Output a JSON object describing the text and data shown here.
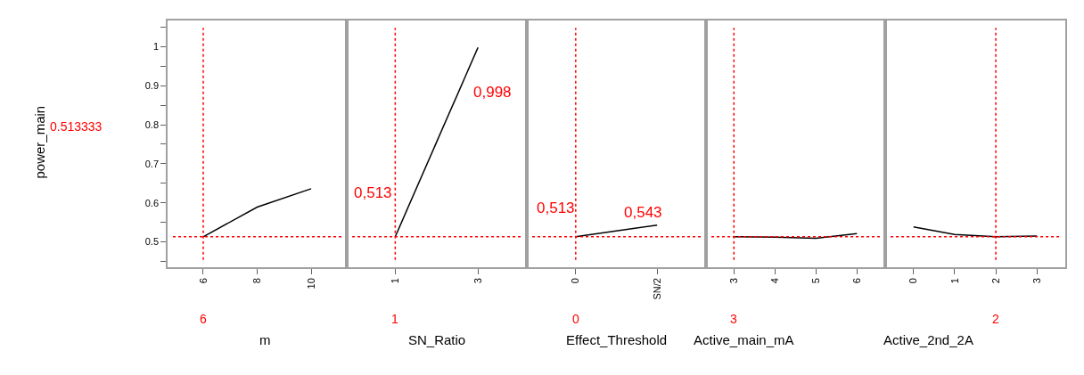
{
  "chart_data": [
    {
      "type": "line",
      "xlabel": "m",
      "ylabel": "power_main",
      "x": [
        6,
        8,
        10
      ],
      "series": [
        {
          "color": "#000000",
          "values": [
            0.513,
            0.589,
            0.636
          ]
        }
      ],
      "xlim": [
        4.68,
        11.32
      ],
      "xticks": [
        6,
        8,
        10
      ],
      "ylim": [
        0.435,
        1.067
      ],
      "yticks": [
        {
          "value": 0.45,
          "label": null
        },
        0.5,
        {
          "value": 0.55,
          "label": null
        },
        0.6,
        {
          "value": 0.65,
          "label": null
        },
        0.7,
        {
          "value": 0.75,
          "label": null
        },
        0.8,
        {
          "value": 0.85,
          "label": null
        },
        0.9,
        {
          "value": 0.95,
          "label": null
        },
        1,
        {
          "value": 1.05,
          "label": null
        }
      ],
      "ref_lines": [
        {
          "axis": "x",
          "value": 6,
          "label": "6",
          "color": "#ff0000",
          "line_style": "dotted"
        },
        {
          "axis": "y",
          "value": 0.513333,
          "label": "0.513333",
          "color": "#ff0000",
          "line_style": "dotted"
        }
      ]
    },
    {
      "type": "line",
      "xlabel": "SN_Ratio",
      "x": [
        1,
        3
      ],
      "series": [
        {
          "color": "#000000",
          "values": [
            0.513,
            0.998
          ]
        }
      ],
      "xlim": [
        -0.17,
        4.18
      ],
      "xticks": [
        1,
        3
      ],
      "ylim": [
        0.435,
        1.067
      ],
      "tick_labels": "x",
      "ref_lines": [
        {
          "axis": "x",
          "value": 1,
          "label": "1",
          "color": "#ff0000",
          "line_style": "dotted"
        },
        {
          "axis": "y",
          "value": 0.513333,
          "color": "#ff0000",
          "line_style": "dotted"
        }
      ],
      "annotations": [
        {
          "text": "0,513",
          "x": 1,
          "y": 0.513
        },
        {
          "text": "0,998",
          "x": 3,
          "y": 0.998
        }
      ]
    },
    {
      "type": "line",
      "xlabel": "Effect_Threshold",
      "categories": [
        "0",
        "SN/2"
      ],
      "series": [
        {
          "color": "#000000",
          "values": [
            0.513,
            0.543
          ]
        }
      ],
      "ylim": [
        0.435,
        1.067
      ],
      "tick_labels": "x",
      "ref_lines": [
        {
          "axis": "x",
          "value": "0",
          "label": "0",
          "color": "#ff0000",
          "line_style": "dotted"
        },
        {
          "axis": "y",
          "value": 0.513333,
          "color": "#ff0000",
          "line_style": "dotted"
        }
      ],
      "annotations": [
        {
          "text": "0,513",
          "x": "0",
          "y": 0.513
        },
        {
          "text": "0,543",
          "x": "SN/2",
          "y": 0.543
        }
      ]
    },
    {
      "type": "line",
      "xlabel": "Active_main_mA",
      "x": [
        3,
        4,
        5,
        6
      ],
      "series": [
        {
          "color": "#000000",
          "values": [
            0.513,
            0.512,
            0.509,
            0.521
          ]
        }
      ],
      "xlim": [
        2.32,
        6.69
      ],
      "xticks": [
        3,
        4,
        5,
        6
      ],
      "ylim": [
        0.435,
        1.067
      ],
      "tick_labels": "x",
      "ref_lines": [
        {
          "axis": "x",
          "value": 3,
          "label": "3",
          "color": "#ff0000",
          "line_style": "dotted"
        },
        {
          "axis": "y",
          "value": 0.513333,
          "color": "#ff0000",
          "line_style": "dotted"
        }
      ]
    },
    {
      "type": "line",
      "xlabel": "Active_2nd_2A",
      "x": [
        0,
        1,
        2,
        3
      ],
      "series": [
        {
          "color": "#000000",
          "values": [
            0.538,
            0.519,
            0.513,
            0.515
          ]
        }
      ],
      "xlim": [
        -0.69,
        3.69
      ],
      "xticks": [
        0,
        1,
        2,
        3
      ],
      "ylim": [
        0.435,
        1.067
      ],
      "tick_labels": "x",
      "ref_lines": [
        {
          "axis": "x",
          "value": 2,
          "label": "2",
          "color": "#ff0000",
          "line_style": "dotted"
        },
        {
          "axis": "y",
          "value": 0.513333,
          "color": "#ff0000",
          "line_style": "dotted"
        }
      ]
    }
  ]
}
